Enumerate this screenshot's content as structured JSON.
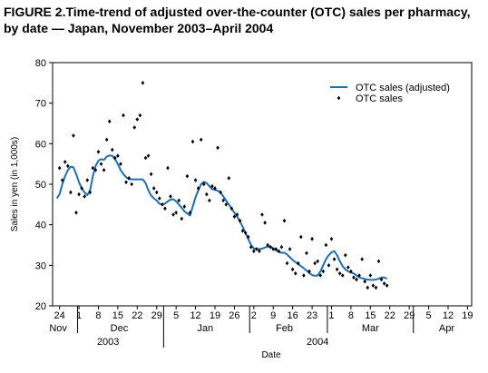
{
  "figure_title": "FIGURE 2.Time-trend of adjusted over-the-counter (OTC) sales per pharmacy, by date — Japan, November 2003–April 2004",
  "colors": {
    "line": "#1f6fb5",
    "dots": "#000000",
    "axis": "#000000"
  },
  "chart_data": {
    "type": "scatter",
    "ylabel": "Sales in yen (in 1,000s)",
    "xlabel": "Date",
    "ylim": [
      20,
      80
    ],
    "yticks": [
      20,
      30,
      40,
      50,
      60,
      70,
      80
    ],
    "x_axis": "days since 2003-11-24",
    "xlim": [
      -2.5,
      148.5
    ],
    "xticks": [
      {
        "label": "24",
        "x": 0
      },
      {
        "label": "1",
        "x": 7
      },
      {
        "label": "8",
        "x": 14
      },
      {
        "label": "15",
        "x": 21
      },
      {
        "label": "22",
        "x": 28
      },
      {
        "label": "29",
        "x": 35
      },
      {
        "label": "5",
        "x": 42
      },
      {
        "label": "12",
        "x": 49
      },
      {
        "label": "19",
        "x": 56
      },
      {
        "label": "26",
        "x": 63
      },
      {
        "label": "2",
        "x": 70
      },
      {
        "label": "9",
        "x": 77
      },
      {
        "label": "16",
        "x": 84
      },
      {
        "label": "23",
        "x": 91
      },
      {
        "label": "1",
        "x": 98
      },
      {
        "label": "8",
        "x": 105
      },
      {
        "label": "15",
        "x": 112
      },
      {
        "label": "22",
        "x": 119
      },
      {
        "label": "29",
        "x": 126
      },
      {
        "label": "5",
        "x": 133
      },
      {
        "label": "12",
        "x": 140
      },
      {
        "label": "19",
        "x": 147
      }
    ],
    "months": [
      {
        "label": "Nov",
        "x": -0.5
      },
      {
        "label": "Dec",
        "x": 21.5
      },
      {
        "label": "Jan",
        "x": 52.5
      },
      {
        "label": "Feb",
        "x": 81
      },
      {
        "label": "Mar",
        "x": 112
      },
      {
        "label": "Apr",
        "x": 139.5
      }
    ],
    "month_separators": [
      6.5,
      37.5,
      68.5,
      96.5,
      127.5
    ],
    "years": [
      {
        "label": "2003",
        "x": 17.5
      },
      {
        "label": "2004",
        "x": 93
      }
    ],
    "year_separators": [
      37.5
    ],
    "legend": {
      "position": "top-right",
      "entries": [
        "OTC sales (adjusted)",
        "OTC sales"
      ]
    },
    "series": [
      {
        "name": "OTC sales (adjusted)",
        "type": "line",
        "points": [
          [
            -1,
            46.5
          ],
          [
            0,
            47.5
          ],
          [
            1,
            50
          ],
          [
            2,
            52
          ],
          [
            3,
            53.5
          ],
          [
            4,
            54.3
          ],
          [
            5,
            54.2
          ],
          [
            6,
            52.5
          ],
          [
            7,
            50.5
          ],
          [
            8,
            49
          ],
          [
            9,
            48
          ],
          [
            10,
            47.3
          ],
          [
            11,
            48.5
          ],
          [
            12,
            52
          ],
          [
            13,
            54.5
          ],
          [
            14,
            55.8
          ],
          [
            15,
            56.2
          ],
          [
            16,
            56
          ],
          [
            17,
            56.8
          ],
          [
            18,
            57.1
          ],
          [
            19,
            57
          ],
          [
            20,
            56.2
          ],
          [
            21,
            55
          ],
          [
            22,
            53.5
          ],
          [
            23,
            52.5
          ],
          [
            24,
            51.7
          ],
          [
            25,
            51.3
          ],
          [
            26,
            51.2
          ],
          [
            27,
            51.2
          ],
          [
            28,
            51.2
          ],
          [
            29,
            51.2
          ],
          [
            30,
            51.2
          ],
          [
            31,
            50.3
          ],
          [
            32,
            48.5
          ],
          [
            33,
            47.2
          ],
          [
            34,
            46.5
          ],
          [
            35,
            46
          ],
          [
            36,
            45.2
          ],
          [
            37,
            45
          ],
          [
            38,
            45.2
          ],
          [
            39,
            45.8
          ],
          [
            40,
            46.2
          ],
          [
            41,
            46.3
          ],
          [
            42,
            45.8
          ],
          [
            43,
            45
          ],
          [
            44,
            44.2
          ],
          [
            45,
            43.3
          ],
          [
            46,
            42.8
          ],
          [
            47,
            42.3
          ],
          [
            48,
            44.5
          ],
          [
            49,
            46.8
          ],
          [
            50,
            48.5
          ],
          [
            51,
            50
          ],
          [
            52,
            50.6
          ],
          [
            53,
            50.3
          ],
          [
            54,
            49.5
          ],
          [
            55,
            48.8
          ],
          [
            56,
            48.6
          ],
          [
            57,
            48.4
          ],
          [
            58,
            48
          ],
          [
            59,
            47
          ],
          [
            60,
            46
          ],
          [
            61,
            45
          ],
          [
            62,
            44
          ],
          [
            63,
            43
          ],
          [
            64,
            42
          ],
          [
            65,
            40.8
          ],
          [
            66,
            39.5
          ],
          [
            67,
            38
          ],
          [
            68,
            36.5
          ],
          [
            69,
            35
          ],
          [
            70,
            34.2
          ],
          [
            71,
            34
          ],
          [
            72,
            34
          ],
          [
            73,
            34.1
          ],
          [
            74,
            34.4
          ],
          [
            75,
            34.6
          ],
          [
            76,
            34.6
          ],
          [
            77,
            34.2
          ],
          [
            78,
            33.7
          ],
          [
            79,
            33.3
          ],
          [
            80,
            33.1
          ],
          [
            81,
            33.1
          ],
          [
            82,
            32.7
          ],
          [
            83,
            32
          ],
          [
            84,
            31.3
          ],
          [
            85,
            30.8
          ],
          [
            86,
            30.3
          ],
          [
            87,
            29.8
          ],
          [
            88,
            29.3
          ],
          [
            89,
            28.7
          ],
          [
            90,
            28.1
          ],
          [
            91,
            27.6
          ],
          [
            92,
            27.4
          ],
          [
            93,
            27.5
          ],
          [
            94,
            28.5
          ],
          [
            95,
            30
          ],
          [
            96,
            31.5
          ],
          [
            97,
            32.5
          ],
          [
            98,
            33.2
          ],
          [
            99,
            33.5
          ],
          [
            100,
            32.5
          ],
          [
            101,
            31
          ],
          [
            102,
            29.8
          ],
          [
            103,
            29
          ],
          [
            104,
            28.5
          ],
          [
            105,
            28.2
          ],
          [
            106,
            28
          ],
          [
            107,
            27.5
          ],
          [
            108,
            27
          ],
          [
            109,
            26.8
          ],
          [
            110,
            26.6
          ],
          [
            111,
            26.5
          ],
          [
            112,
            26.4
          ],
          [
            113,
            26.4
          ],
          [
            114,
            26.5
          ],
          [
            115,
            26.7
          ],
          [
            116,
            27
          ],
          [
            117,
            27
          ],
          [
            118,
            26.7
          ]
        ]
      },
      {
        "name": "OTC sales",
        "type": "scatter",
        "points": [
          [
            0,
            54
          ],
          [
            1,
            51
          ],
          [
            2,
            55.5
          ],
          [
            3,
            54.5
          ],
          [
            4,
            48
          ],
          [
            5,
            62
          ],
          [
            6,
            43
          ],
          [
            7,
            47.5
          ],
          [
            8,
            49
          ],
          [
            9,
            47
          ],
          [
            10,
            51
          ],
          [
            11,
            48
          ],
          [
            12,
            54
          ],
          [
            13,
            53.5
          ],
          [
            14,
            58
          ],
          [
            15,
            55
          ],
          [
            16,
            53.5
          ],
          [
            17,
            61
          ],
          [
            18,
            65.5
          ],
          [
            19,
            58.5
          ],
          [
            20,
            56.5
          ],
          [
            21,
            57
          ],
          [
            22,
            55
          ],
          [
            23,
            67
          ],
          [
            24,
            50.5
          ],
          [
            25,
            51.5
          ],
          [
            26,
            50
          ],
          [
            27,
            64
          ],
          [
            28,
            66
          ],
          [
            29,
            67
          ],
          [
            30,
            75
          ],
          [
            31,
            56.5
          ],
          [
            32,
            57
          ],
          [
            33,
            52.5
          ],
          [
            34,
            49
          ],
          [
            35,
            48
          ],
          [
            36,
            46.5
          ],
          [
            37,
            45
          ],
          [
            38,
            44
          ],
          [
            39,
            54
          ],
          [
            40,
            47
          ],
          [
            41,
            42.5
          ],
          [
            42,
            43
          ],
          [
            43,
            46
          ],
          [
            44,
            41.5
          ],
          [
            45,
            44.5
          ],
          [
            46,
            52
          ],
          [
            47,
            43
          ],
          [
            48,
            60.5
          ],
          [
            49,
            51
          ],
          [
            50,
            49
          ],
          [
            51,
            61
          ],
          [
            52,
            50
          ],
          [
            53,
            47.5
          ],
          [
            54,
            46
          ],
          [
            55,
            49.5
          ],
          [
            56,
            49
          ],
          [
            57,
            59
          ],
          [
            58,
            48
          ],
          [
            59,
            46
          ],
          [
            60,
            45
          ],
          [
            61,
            51.5
          ],
          [
            62,
            44
          ],
          [
            63,
            42
          ],
          [
            64,
            42.5
          ],
          [
            65,
            41
          ],
          [
            66,
            38.5
          ],
          [
            67,
            38
          ],
          [
            68,
            37
          ],
          [
            69,
            34.5
          ],
          [
            70,
            33.5
          ],
          [
            71,
            34
          ],
          [
            72,
            33.5
          ],
          [
            73,
            42.5
          ],
          [
            74,
            40.5
          ],
          [
            75,
            35
          ],
          [
            76,
            34.5
          ],
          [
            77,
            34
          ],
          [
            78,
            34
          ],
          [
            79,
            33.5
          ],
          [
            80,
            34.5
          ],
          [
            81,
            41
          ],
          [
            82,
            30.5
          ],
          [
            83,
            34
          ],
          [
            84,
            29
          ],
          [
            85,
            28
          ],
          [
            86,
            30.5
          ],
          [
            87,
            37
          ],
          [
            88,
            27.5
          ],
          [
            89,
            33
          ],
          [
            90,
            28.5
          ],
          [
            91,
            36.5
          ],
          [
            92,
            30.5
          ],
          [
            93,
            31
          ],
          [
            94,
            27.5
          ],
          [
            95,
            28.5
          ],
          [
            96,
            35
          ],
          [
            97,
            30
          ],
          [
            98,
            36.5
          ],
          [
            99,
            31.5
          ],
          [
            100,
            29
          ],
          [
            101,
            28
          ],
          [
            102,
            27.5
          ],
          [
            103,
            32.5
          ],
          [
            104,
            29.5
          ],
          [
            105,
            28.5
          ],
          [
            106,
            27
          ],
          [
            107,
            26.5
          ],
          [
            108,
            27.5
          ],
          [
            109,
            31.5
          ],
          [
            110,
            26
          ],
          [
            111,
            24.5
          ],
          [
            112,
            27.5
          ],
          [
            113,
            25
          ],
          [
            114,
            24.5
          ],
          [
            115,
            31
          ],
          [
            116,
            26.5
          ],
          [
            117,
            25.5
          ],
          [
            118,
            25
          ]
        ]
      }
    ]
  }
}
